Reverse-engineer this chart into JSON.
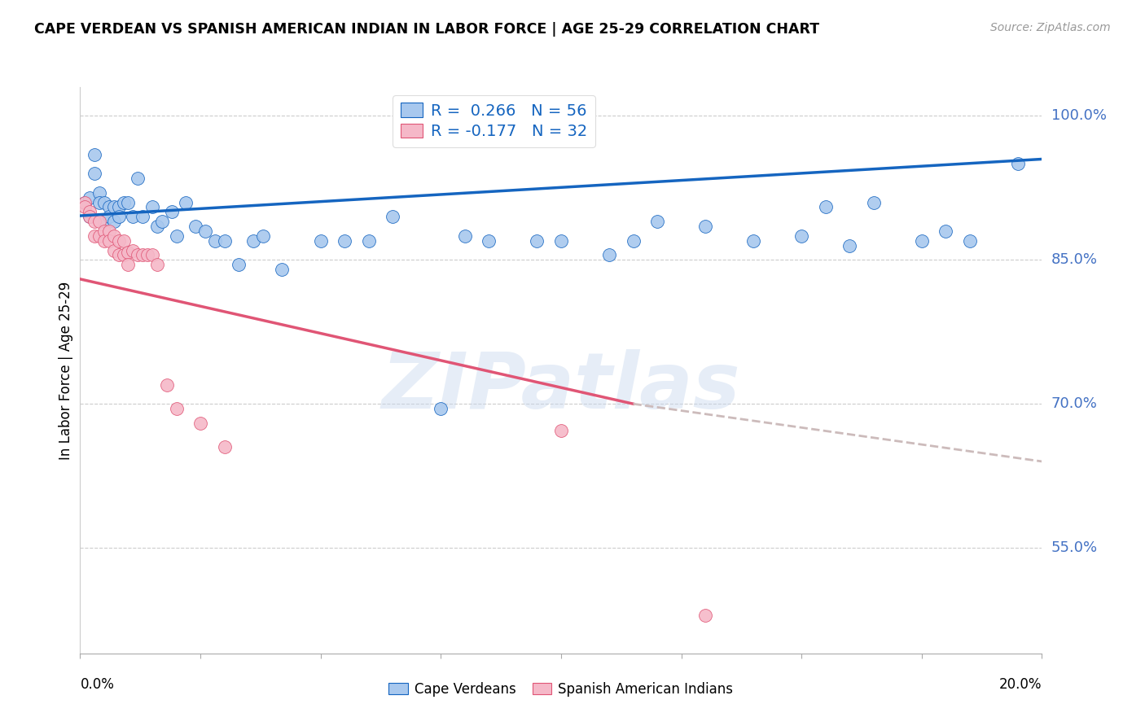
{
  "title": "CAPE VERDEAN VS SPANISH AMERICAN INDIAN IN LABOR FORCE | AGE 25-29 CORRELATION CHART",
  "source": "Source: ZipAtlas.com",
  "ylabel": "In Labor Force | Age 25-29",
  "right_ytick_vals": [
    1.0,
    0.85,
    0.7,
    0.55
  ],
  "right_ytick_labels": [
    "100.0%",
    "85.0%",
    "70.0%",
    "55.0%"
  ],
  "xlim": [
    0.0,
    0.2
  ],
  "ylim": [
    0.44,
    1.03
  ],
  "legend_blue_label": "R =  0.266   N = 56",
  "legend_pink_label": "R = -0.177   N = 32",
  "legend1_label": "Cape Verdeans",
  "legend2_label": "Spanish American Indians",
  "blue_color": "#A8C8EE",
  "pink_color": "#F5B8C8",
  "blue_line_color": "#1565C0",
  "pink_line_color": "#E05575",
  "dash_color": "#CCBBBB",
  "watermark": "ZIPatlas",
  "blue_scatter_x": [
    0.001,
    0.002,
    0.002,
    0.003,
    0.003,
    0.004,
    0.004,
    0.005,
    0.005,
    0.006,
    0.006,
    0.007,
    0.007,
    0.008,
    0.008,
    0.009,
    0.01,
    0.011,
    0.012,
    0.013,
    0.015,
    0.016,
    0.017,
    0.019,
    0.02,
    0.022,
    0.024,
    0.026,
    0.028,
    0.03,
    0.033,
    0.036,
    0.038,
    0.042,
    0.05,
    0.055,
    0.06,
    0.065,
    0.075,
    0.08,
    0.085,
    0.095,
    0.1,
    0.11,
    0.115,
    0.12,
    0.13,
    0.14,
    0.15,
    0.155,
    0.16,
    0.165,
    0.175,
    0.18,
    0.185,
    0.195
  ],
  "blue_scatter_y": [
    0.91,
    0.915,
    0.895,
    0.96,
    0.94,
    0.92,
    0.91,
    0.91,
    0.89,
    0.905,
    0.895,
    0.905,
    0.89,
    0.905,
    0.895,
    0.91,
    0.91,
    0.895,
    0.935,
    0.895,
    0.905,
    0.885,
    0.89,
    0.9,
    0.875,
    0.91,
    0.885,
    0.88,
    0.87,
    0.87,
    0.845,
    0.87,
    0.875,
    0.84,
    0.87,
    0.87,
    0.87,
    0.895,
    0.695,
    0.875,
    0.87,
    0.87,
    0.87,
    0.855,
    0.87,
    0.89,
    0.885,
    0.87,
    0.875,
    0.905,
    0.865,
    0.91,
    0.87,
    0.88,
    0.87,
    0.95
  ],
  "pink_scatter_x": [
    0.001,
    0.001,
    0.002,
    0.002,
    0.003,
    0.003,
    0.004,
    0.004,
    0.005,
    0.005,
    0.006,
    0.006,
    0.007,
    0.007,
    0.008,
    0.008,
    0.009,
    0.009,
    0.01,
    0.01,
    0.011,
    0.012,
    0.013,
    0.014,
    0.015,
    0.016,
    0.018,
    0.02,
    0.025,
    0.03,
    0.1,
    0.13
  ],
  "pink_scatter_y": [
    0.91,
    0.905,
    0.9,
    0.895,
    0.89,
    0.875,
    0.89,
    0.875,
    0.88,
    0.87,
    0.88,
    0.87,
    0.875,
    0.86,
    0.87,
    0.855,
    0.87,
    0.855,
    0.858,
    0.845,
    0.86,
    0.855,
    0.855,
    0.855,
    0.855,
    0.845,
    0.72,
    0.695,
    0.68,
    0.655,
    0.672,
    0.48
  ],
  "blue_trend": [
    0.0,
    0.2,
    0.896,
    0.955
  ],
  "pink_solid": [
    0.0,
    0.115,
    0.83,
    0.7
  ],
  "pink_dash": [
    0.115,
    0.2,
    0.7,
    0.64
  ]
}
